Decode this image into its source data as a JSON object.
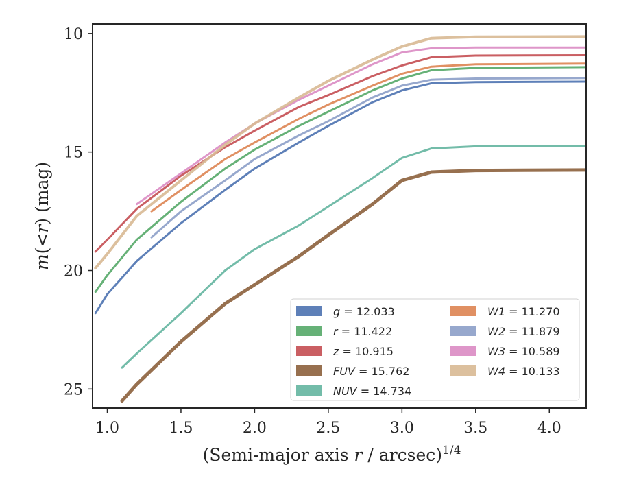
{
  "chart_data": {
    "type": "line",
    "title": "",
    "xlabel": {
      "pre": "(Semi-major axis ",
      "var": "r",
      "post": " / arcsec)",
      "sup": "1/4"
    },
    "ylabel": {
      "pre": "m",
      "open": "(",
      "lt": "<",
      "var": "r",
      "close": ")",
      "post": " (mag)"
    },
    "xlim": [
      0.9,
      4.25
    ],
    "ylim": [
      25.8,
      9.6
    ],
    "y_inverted": true,
    "xticks": [
      1.0,
      1.5,
      2.0,
      2.5,
      3.0,
      3.5,
      4.0
    ],
    "xtick_labels": [
      "1.0",
      "1.5",
      "2.0",
      "2.5",
      "3.0",
      "3.5",
      "4.0"
    ],
    "yticks": [
      10,
      15,
      20,
      25
    ],
    "ytick_labels": [
      "10",
      "15",
      "20",
      "25"
    ],
    "grid": false,
    "legend": {
      "placement": "lower-right",
      "columns": 2
    },
    "series": [
      {
        "id": "g",
        "band": "g",
        "value": "12.033",
        "color": "#4c72b0",
        "width": 3,
        "points": [
          [
            0.92,
            21.8
          ],
          [
            1.0,
            21.0
          ],
          [
            1.2,
            19.6
          ],
          [
            1.5,
            18.0
          ],
          [
            1.8,
            16.6
          ],
          [
            2.0,
            15.7
          ],
          [
            2.3,
            14.6
          ],
          [
            2.5,
            13.9
          ],
          [
            2.8,
            12.9
          ],
          [
            3.0,
            12.4
          ],
          [
            3.2,
            12.1
          ],
          [
            3.5,
            12.05
          ],
          [
            4.25,
            12.03
          ]
        ]
      },
      {
        "id": "r",
        "band": "r",
        "value": "11.422",
        "color": "#55a868",
        "width": 3,
        "points": [
          [
            0.92,
            20.9
          ],
          [
            1.0,
            20.2
          ],
          [
            1.2,
            18.7
          ],
          [
            1.5,
            17.1
          ],
          [
            1.8,
            15.7
          ],
          [
            2.0,
            14.9
          ],
          [
            2.3,
            13.9
          ],
          [
            2.5,
            13.3
          ],
          [
            2.8,
            12.4
          ],
          [
            3.0,
            11.9
          ],
          [
            3.2,
            11.55
          ],
          [
            3.5,
            11.45
          ],
          [
            4.25,
            11.42
          ]
        ]
      },
      {
        "id": "z",
        "band": "z",
        "value": "10.915",
        "color": "#c44e52",
        "width": 3,
        "points": [
          [
            0.92,
            19.2
          ],
          [
            1.0,
            18.7
          ],
          [
            1.2,
            17.4
          ],
          [
            1.5,
            16.0
          ],
          [
            1.8,
            14.8
          ],
          [
            2.0,
            14.1
          ],
          [
            2.3,
            13.1
          ],
          [
            2.5,
            12.6
          ],
          [
            2.8,
            11.8
          ],
          [
            3.0,
            11.35
          ],
          [
            3.2,
            11.0
          ],
          [
            3.5,
            10.93
          ],
          [
            4.25,
            10.915
          ]
        ]
      },
      {
        "id": "FUV",
        "band": "FUV",
        "value": "15.762",
        "color": "#8c613c",
        "width": 5,
        "points": [
          [
            1.1,
            25.5
          ],
          [
            1.2,
            24.8
          ],
          [
            1.5,
            23.0
          ],
          [
            1.8,
            21.4
          ],
          [
            2.0,
            20.6
          ],
          [
            2.3,
            19.4
          ],
          [
            2.5,
            18.5
          ],
          [
            2.8,
            17.2
          ],
          [
            3.0,
            16.2
          ],
          [
            3.2,
            15.85
          ],
          [
            3.5,
            15.78
          ],
          [
            4.25,
            15.76
          ]
        ]
      },
      {
        "id": "NUV",
        "band": "NUV",
        "value": "14.734",
        "color": "#64b5a0",
        "width": 3,
        "points": [
          [
            1.1,
            24.1
          ],
          [
            1.2,
            23.5
          ],
          [
            1.5,
            21.8
          ],
          [
            1.8,
            20.0
          ],
          [
            2.0,
            19.1
          ],
          [
            2.3,
            18.1
          ],
          [
            2.5,
            17.3
          ],
          [
            2.8,
            16.1
          ],
          [
            3.0,
            15.25
          ],
          [
            3.2,
            14.85
          ],
          [
            3.5,
            14.76
          ],
          [
            4.25,
            14.734
          ]
        ]
      },
      {
        "id": "W1",
        "band": "W1",
        "value": "11.270",
        "color": "#dd8452",
        "width": 3,
        "points": [
          [
            1.3,
            17.5
          ],
          [
            1.5,
            16.6
          ],
          [
            1.8,
            15.3
          ],
          [
            2.0,
            14.6
          ],
          [
            2.3,
            13.6
          ],
          [
            2.5,
            13.0
          ],
          [
            2.8,
            12.2
          ],
          [
            3.0,
            11.7
          ],
          [
            3.2,
            11.4
          ],
          [
            3.5,
            11.3
          ],
          [
            4.25,
            11.27
          ]
        ]
      },
      {
        "id": "W2",
        "band": "W2",
        "value": "11.879",
        "color": "#8c9fc8",
        "width": 3,
        "points": [
          [
            1.3,
            18.6
          ],
          [
            1.5,
            17.5
          ],
          [
            1.8,
            16.2
          ],
          [
            2.0,
            15.3
          ],
          [
            2.3,
            14.3
          ],
          [
            2.5,
            13.7
          ],
          [
            2.8,
            12.7
          ],
          [
            3.0,
            12.2
          ],
          [
            3.2,
            11.95
          ],
          [
            3.5,
            11.9
          ],
          [
            4.25,
            11.879
          ]
        ]
      },
      {
        "id": "W3",
        "band": "W3",
        "value": "10.589",
        "color": "#da8bc3",
        "width": 3,
        "points": [
          [
            1.2,
            17.2
          ],
          [
            1.5,
            15.9
          ],
          [
            1.8,
            14.6
          ],
          [
            2.0,
            13.8
          ],
          [
            2.3,
            12.8
          ],
          [
            2.5,
            12.2
          ],
          [
            2.8,
            11.3
          ],
          [
            3.0,
            10.8
          ],
          [
            3.2,
            10.62
          ],
          [
            3.5,
            10.59
          ],
          [
            4.25,
            10.589
          ]
        ]
      },
      {
        "id": "W4",
        "band": "W4",
        "value": "10.133",
        "color": "#d8b993",
        "width": 4,
        "points": [
          [
            0.92,
            19.9
          ],
          [
            1.0,
            19.3
          ],
          [
            1.2,
            17.7
          ],
          [
            1.5,
            16.2
          ],
          [
            1.8,
            14.7
          ],
          [
            2.0,
            13.8
          ],
          [
            2.3,
            12.7
          ],
          [
            2.5,
            12.0
          ],
          [
            2.8,
            11.1
          ],
          [
            3.0,
            10.55
          ],
          [
            3.2,
            10.2
          ],
          [
            3.5,
            10.14
          ],
          [
            4.25,
            10.133
          ]
        ]
      }
    ]
  }
}
